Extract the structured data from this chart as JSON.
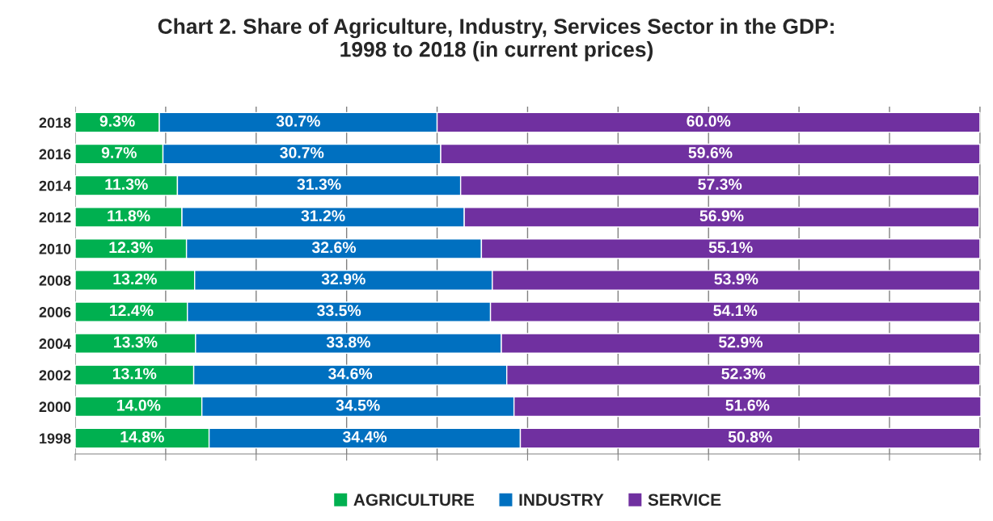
{
  "chart_data": {
    "type": "bar",
    "orientation": "horizontal",
    "stacked": true,
    "title": "Chart 2. Share of Agriculture, Industry, Services Sector in the GDP:\n1998 to 2018 (in current prices)",
    "categories": [
      "2018",
      "2016",
      "2014",
      "2012",
      "2010",
      "2008",
      "2006",
      "2004",
      "2002",
      "2000",
      "1998"
    ],
    "series": [
      {
        "name": "AGRICULTURE",
        "color": "#00b050",
        "values": [
          9.3,
          9.7,
          11.3,
          11.8,
          12.3,
          13.2,
          12.4,
          13.3,
          13.1,
          14.0,
          14.8
        ],
        "value_labels": [
          "9.3%",
          "9.7%",
          "11.3%",
          "11.8%",
          "12.3%",
          "13.2%",
          "12.4%",
          "13.3%",
          "13.1%",
          "14.0%",
          "14.8%"
        ]
      },
      {
        "name": "INDUSTRY",
        "color": "#0070c0",
        "values": [
          30.7,
          30.7,
          31.3,
          31.2,
          32.6,
          32.9,
          33.5,
          33.8,
          34.6,
          34.5,
          34.4
        ],
        "value_labels": [
          "30.7%",
          "30.7%",
          "31.3%",
          "31.2%",
          "32.6%",
          "32.9%",
          "33.5%",
          "33.8%",
          "34.6%",
          "34.5%",
          "34.4%"
        ]
      },
      {
        "name": "SERVICE",
        "color": "#7030a0",
        "values": [
          60.0,
          59.6,
          57.3,
          56.9,
          55.1,
          53.9,
          54.1,
          52.9,
          52.3,
          51.6,
          50.8
        ],
        "value_labels": [
          "60.0%",
          "59.6%",
          "57.3%",
          "56.9%",
          "55.1%",
          "53.9%",
          "54.1%",
          "52.9%",
          "52.3%",
          "51.6%",
          "50.8%"
        ]
      }
    ],
    "xlim": [
      0,
      100.1
    ],
    "xticks": [
      {
        "value": 0,
        "label": null
      },
      {
        "value": 10,
        "label": null
      },
      {
        "value": 20,
        "label": null
      },
      {
        "value": 30,
        "label": null
      },
      {
        "value": 40,
        "label": null
      },
      {
        "value": 50,
        "label": null
      },
      {
        "value": 60,
        "label": null
      },
      {
        "value": 70,
        "label": null
      },
      {
        "value": 80,
        "label": null
      },
      {
        "value": 90,
        "label": null
      },
      {
        "value": 100,
        "label": null
      }
    ],
    "grid": "x",
    "legend": "bottom"
  }
}
